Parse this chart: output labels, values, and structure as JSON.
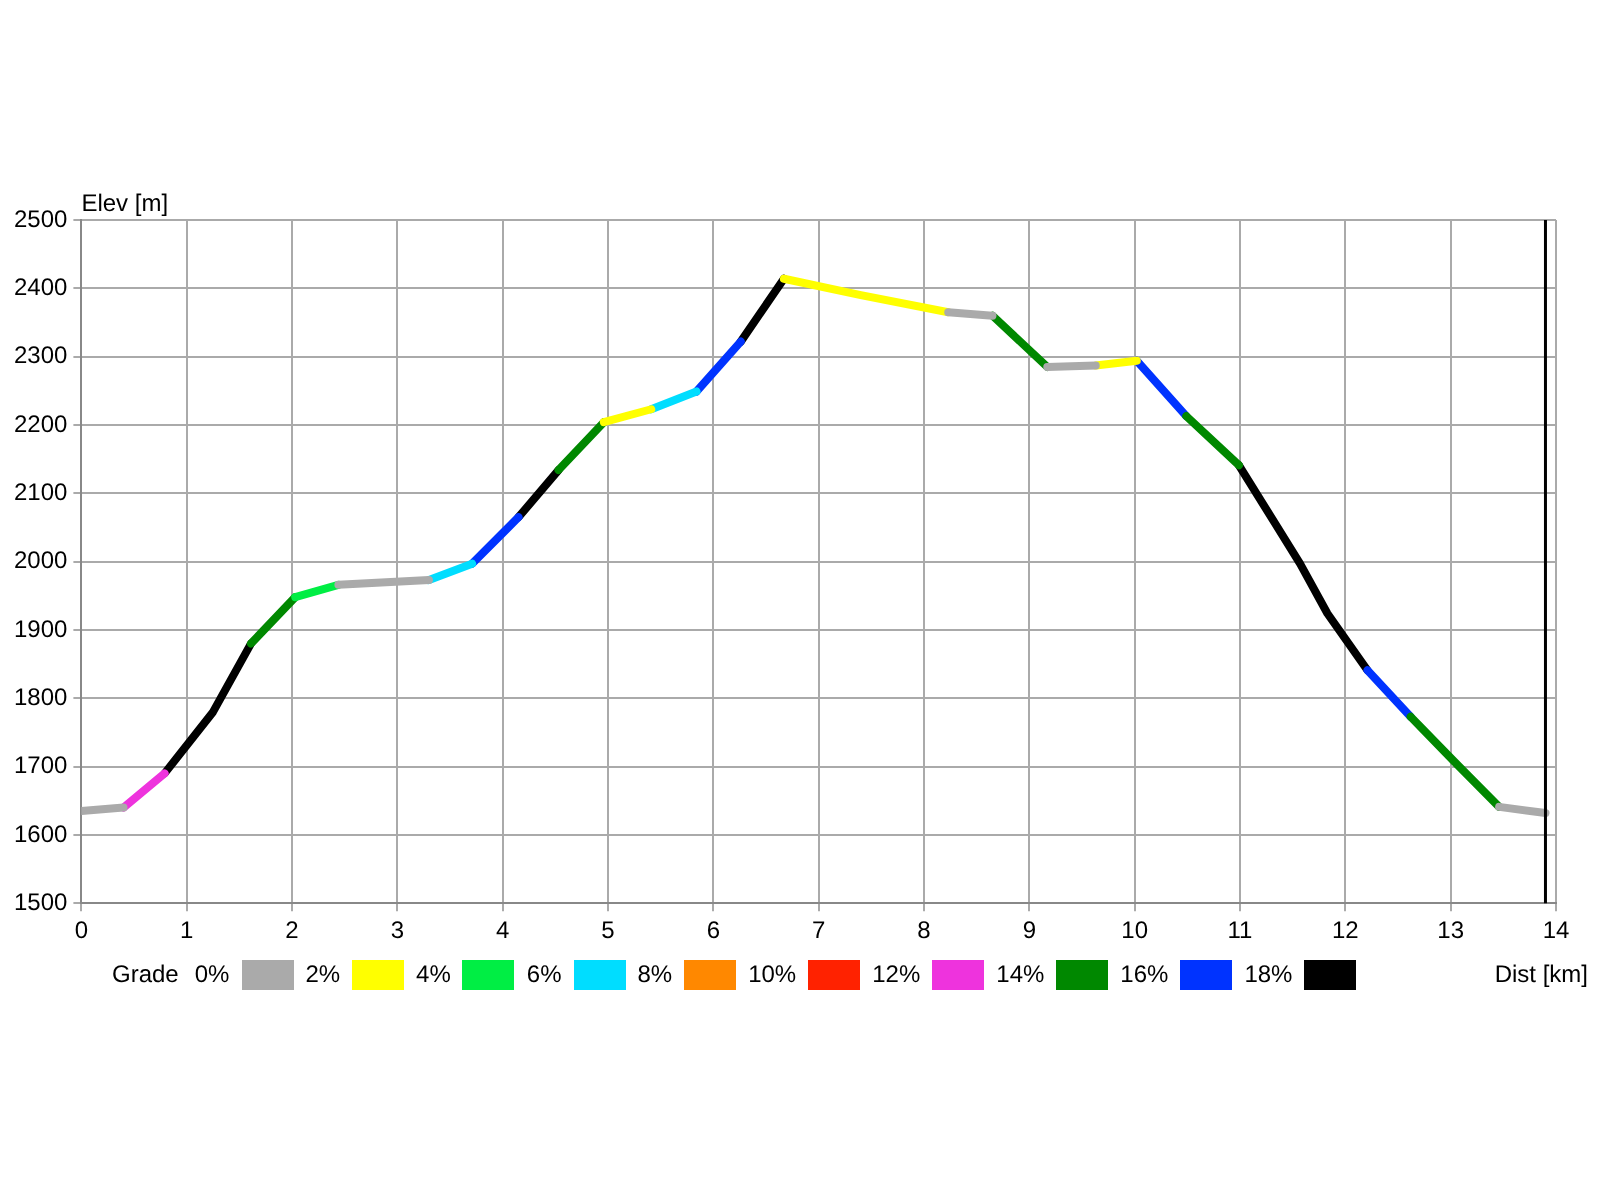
{
  "chart_data": {
    "type": "line",
    "xlabel": "Dist [km]",
    "ylabel": "Elev [m]",
    "legend_title": "Grade",
    "xlim": [
      0,
      14
    ],
    "xticks": [
      0,
      1,
      2,
      3,
      4,
      5,
      6,
      7,
      8,
      9,
      10,
      11,
      12,
      13,
      14
    ],
    "ylim": [
      1500,
      2500
    ],
    "yticks": [
      1500,
      1600,
      1700,
      1800,
      1900,
      2000,
      2100,
      2200,
      2300,
      2400,
      2500
    ],
    "grid": true,
    "legend": "bottom",
    "line_style": "solid",
    "ref_lines": [
      {
        "axis": "x",
        "value": 13.9,
        "color": "#000000"
      }
    ],
    "series": [
      {
        "name": "0%",
        "color": "#aaaaaa",
        "x": [
          0,
          0.4,
          null,
          2.44,
          3.3,
          null,
          8.23,
          8.65,
          null,
          9.17,
          9.63,
          null,
          13.46,
          13.9
        ],
        "values": [
          1635,
          1640,
          null,
          1966,
          1973,
          null,
          2365,
          2360,
          null,
          2285,
          2287,
          null,
          1641,
          1632
        ]
      },
      {
        "name": "2%",
        "color": "#ffff00",
        "x": [
          4.96,
          5.41,
          null,
          6.67,
          7.4,
          8.23,
          null,
          9.63,
          10.02
        ],
        "values": [
          2204,
          2223,
          null,
          2414,
          2390,
          2365,
          null,
          2287,
          2294
        ]
      },
      {
        "name": "4%",
        "color": "#00ee44",
        "x": [
          2.03,
          2.44
        ],
        "values": [
          1948,
          1966
        ]
      },
      {
        "name": "6%",
        "color": "#00ddff",
        "x": [
          3.3,
          3.71,
          null,
          5.41,
          5.84
        ],
        "values": [
          1973,
          1997,
          null,
          2223,
          2249
        ]
      },
      {
        "name": "8%",
        "color": "#ff8800"
      },
      {
        "name": "10%",
        "color": "#ff2200"
      },
      {
        "name": "12%",
        "color": "#ee33dd",
        "x": [
          0.4,
          0.79
        ],
        "values": [
          1640,
          1690
        ]
      },
      {
        "name": "14%",
        "color": "#008800",
        "x": [
          1.61,
          2.03,
          null,
          4.53,
          4.96,
          null,
          8.65,
          9.17,
          null,
          10.49,
          10.99,
          null,
          12.62,
          13.03,
          13.46
        ],
        "values": [
          1880,
          1948,
          null,
          2134,
          2204,
          null,
          2360,
          2285,
          null,
          2213,
          2141,
          null,
          1773,
          1708,
          1641
        ]
      },
      {
        "name": "16%",
        "color": "#0033ff",
        "x": [
          3.71,
          4.15,
          null,
          5.84,
          6.26,
          null,
          10.02,
          10.49,
          null,
          12.21,
          12.62
        ],
        "values": [
          1997,
          2065,
          null,
          2249,
          2322,
          null,
          2294,
          2213,
          null,
          1841,
          1773
        ]
      },
      {
        "name": "18%",
        "color": "#000000",
        "x": [
          0.79,
          1.25,
          1.61,
          null,
          4.15,
          4.53,
          null,
          6.26,
          6.67,
          null,
          10.99,
          11.57,
          11.83,
          12.21
        ],
        "values": [
          1690,
          1780,
          1880,
          null,
          2065,
          2134,
          null,
          2322,
          2414,
          null,
          2141,
          1997,
          1924,
          1841
        ]
      }
    ]
  }
}
